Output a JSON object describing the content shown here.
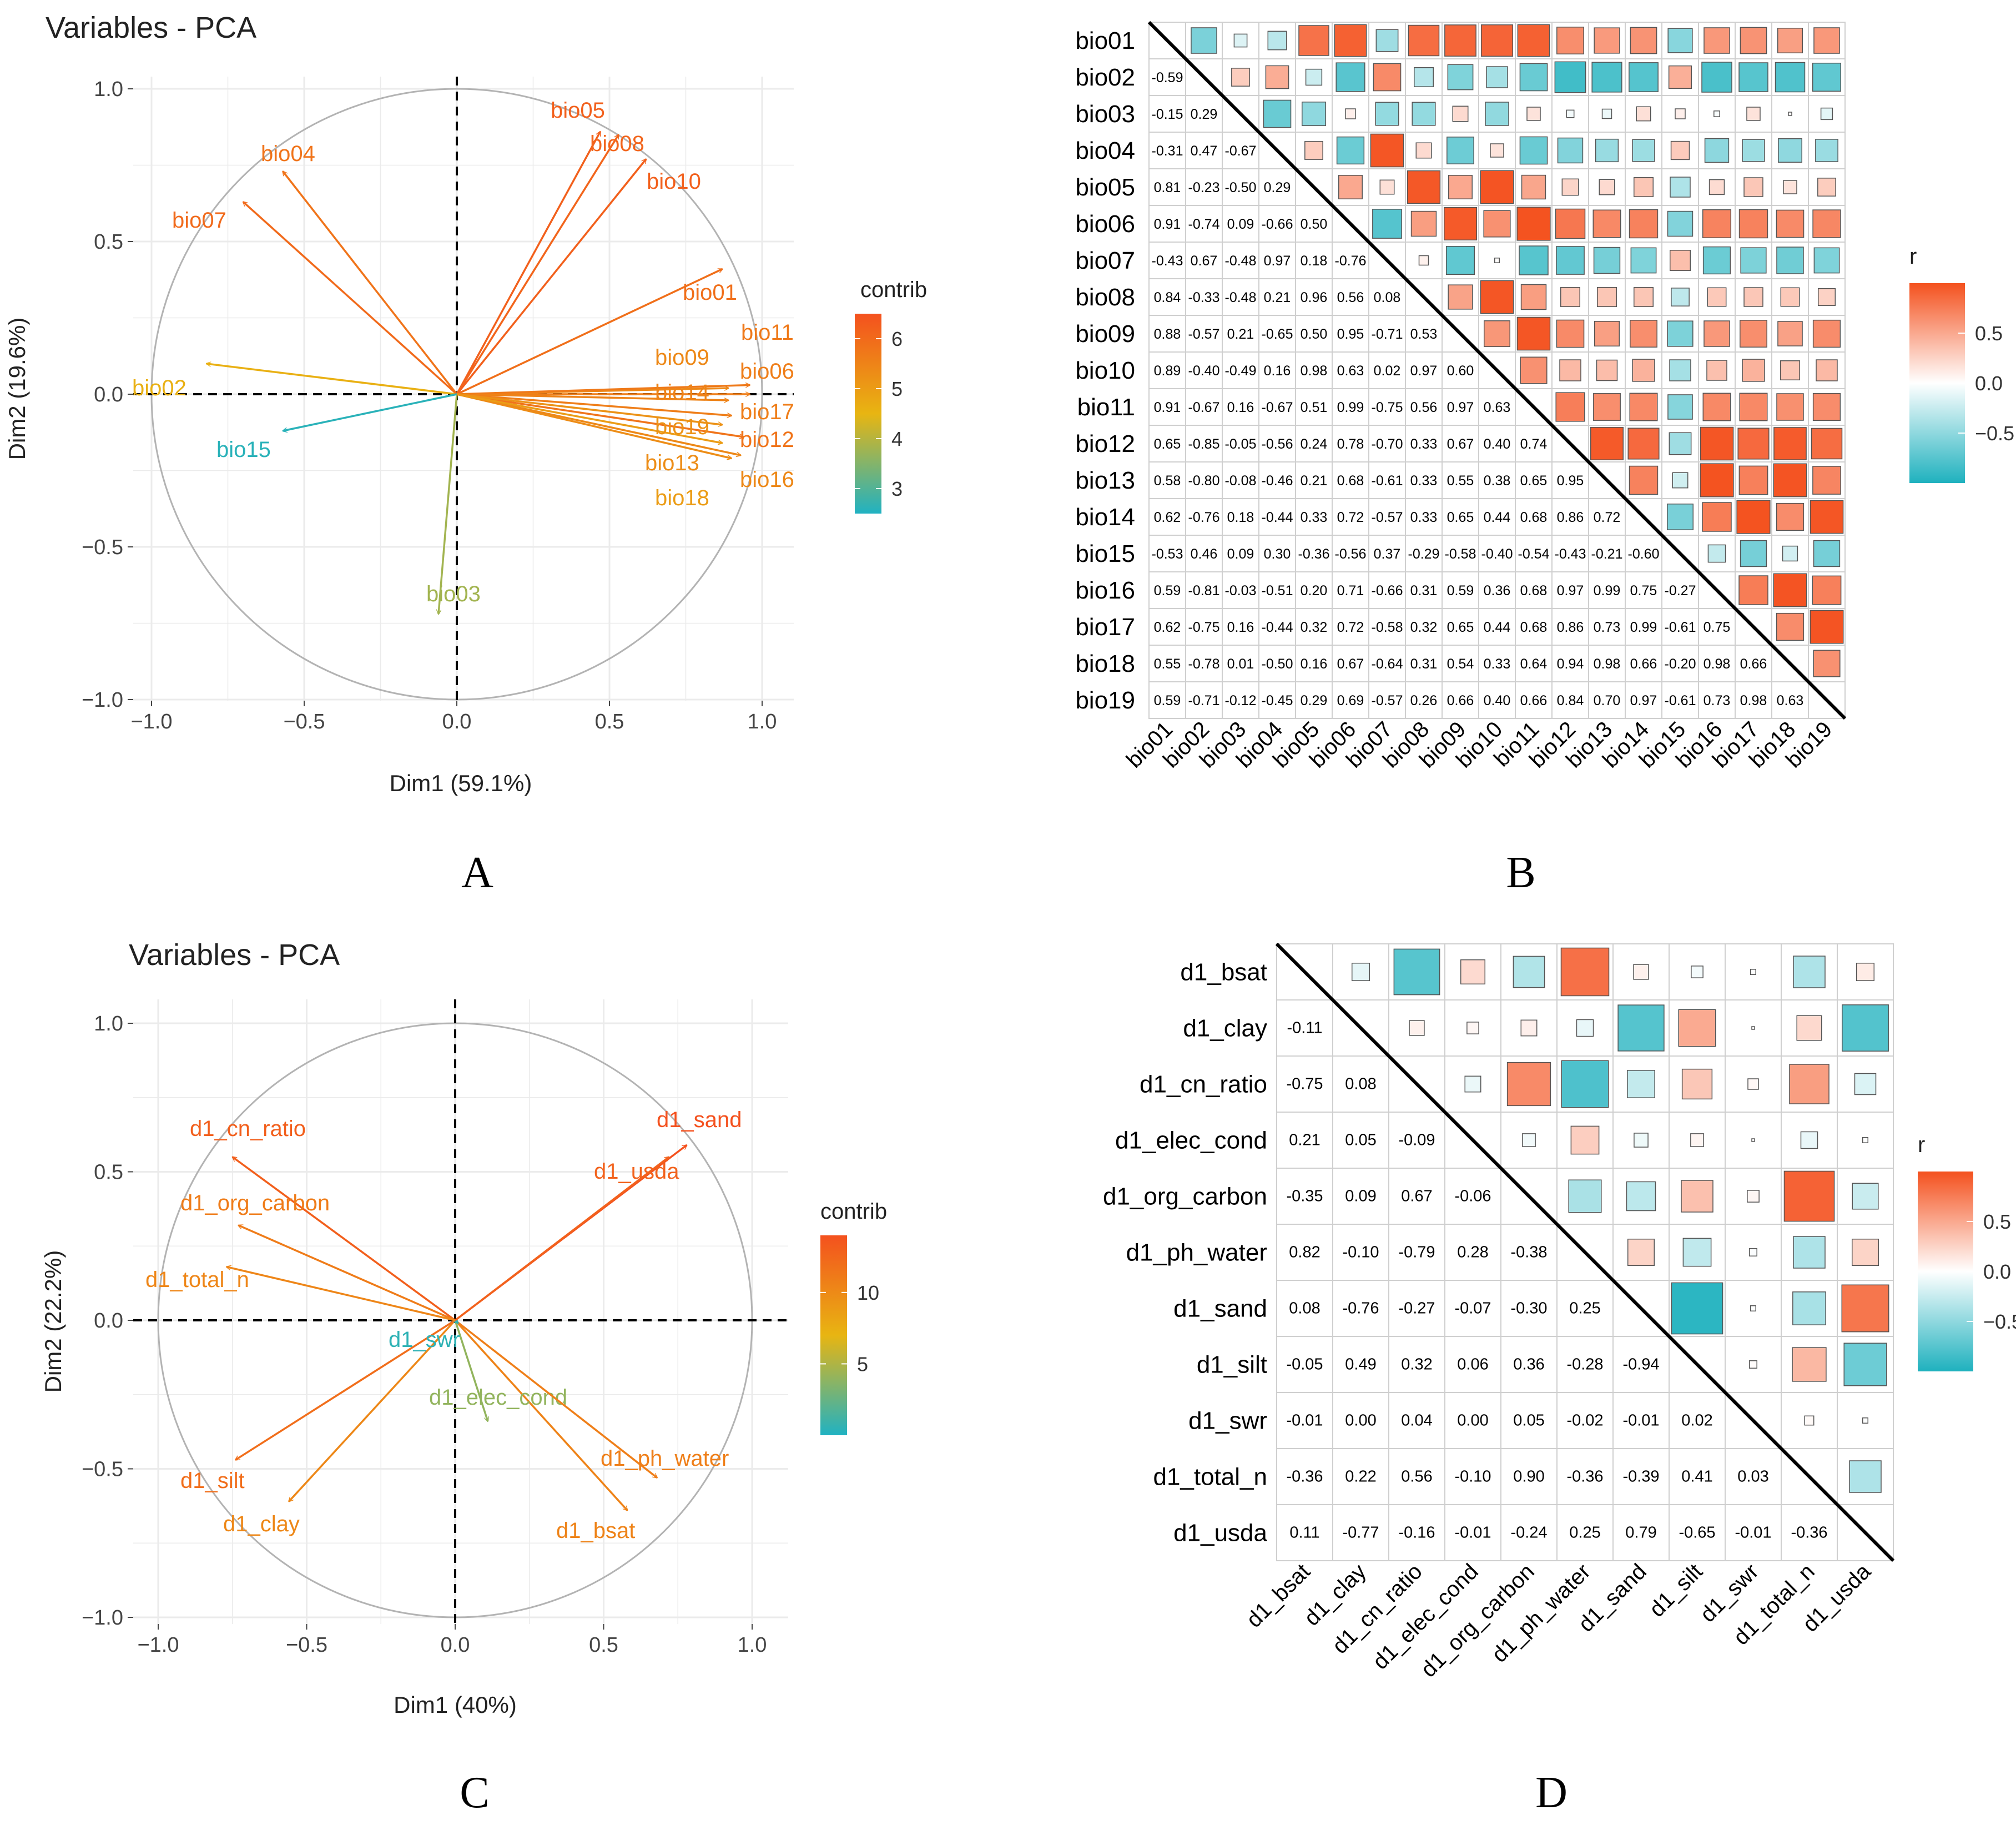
{
  "panels": {
    "A": {
      "label": "A",
      "chart_data": {
        "type": "scatter",
        "title": "Variables - PCA",
        "xlabel": "Dim1 (59.1%)",
        "ylabel": "Dim2 (19.6%)",
        "xlim": [
          -1.0,
          1.0
        ],
        "ylim": [
          -1.0,
          1.0
        ],
        "xticks": [
          "−1.0",
          "−0.5",
          "0.0",
          "0.5",
          "1.0"
        ],
        "yticks": [
          "−1.0",
          "−0.5",
          "0.0",
          "0.5",
          "1.0"
        ],
        "legend_title": "contrib",
        "legend_ticks": [
          3,
          4,
          5,
          6
        ],
        "legend_range": [
          2.5,
          6.5
        ],
        "vectors": [
          {
            "name": "bio01",
            "x": 0.87,
            "y": 0.41,
            "contrib": 5.9
          },
          {
            "name": "bio02",
            "x": -0.82,
            "y": 0.1,
            "contrib": 4.6
          },
          {
            "name": "bio03",
            "x": -0.06,
            "y": -0.72,
            "contrib": 3.8
          },
          {
            "name": "bio04",
            "x": -0.57,
            "y": 0.73,
            "contrib": 5.8
          },
          {
            "name": "bio05",
            "x": 0.47,
            "y": 0.86,
            "contrib": 6.2
          },
          {
            "name": "bio06",
            "x": 0.96,
            "y": 0.0,
            "contrib": 5.6
          },
          {
            "name": "bio07",
            "x": -0.7,
            "y": 0.63,
            "contrib": 6.0
          },
          {
            "name": "bio08",
            "x": 0.53,
            "y": 0.85,
            "contrib": 6.1
          },
          {
            "name": "bio09",
            "x": 0.89,
            "y": 0.02,
            "contrib": 5.4
          },
          {
            "name": "bio10",
            "x": 0.62,
            "y": 0.77,
            "contrib": 6.2
          },
          {
            "name": "bio11",
            "x": 0.96,
            "y": 0.03,
            "contrib": 5.7
          },
          {
            "name": "bio12",
            "x": 0.94,
            "y": -0.14,
            "contrib": 5.8
          },
          {
            "name": "bio13",
            "x": 0.9,
            "y": -0.21,
            "contrib": 5.3
          },
          {
            "name": "bio14",
            "x": 0.89,
            "y": -0.02,
            "contrib": 5.5
          },
          {
            "name": "bio15",
            "x": -0.57,
            "y": -0.12,
            "contrib": 2.6
          },
          {
            "name": "bio16",
            "x": 0.93,
            "y": -0.2,
            "contrib": 5.4
          },
          {
            "name": "bio17",
            "x": 0.9,
            "y": -0.07,
            "contrib": 5.6
          },
          {
            "name": "bio18",
            "x": 0.87,
            "y": -0.16,
            "contrib": 5.0
          },
          {
            "name": "bio19",
            "x": 0.87,
            "y": -0.1,
            "contrib": 5.2
          }
        ]
      }
    },
    "B": {
      "label": "B",
      "chart_data": {
        "type": "heatmap",
        "variables": [
          "bio01",
          "bio02",
          "bio03",
          "bio04",
          "bio05",
          "bio06",
          "bio07",
          "bio08",
          "bio09",
          "bio10",
          "bio11",
          "bio12",
          "bio13",
          "bio14",
          "bio15",
          "bio16",
          "bio17",
          "bio18",
          "bio19"
        ],
        "lower_triangle_labels": [
          [],
          [
            "-0.59"
          ],
          [
            "-0.15",
            "0.29"
          ],
          [
            "-0.31",
            "0.47",
            "-0.67"
          ],
          [
            "0.81",
            "-0.23",
            "-0.50",
            "0.29"
          ],
          [
            "0.91",
            "-0.74",
            "0.09",
            "-0.66",
            "0.50"
          ],
          [
            "-0.43",
            "0.67",
            "-0.48",
            "0.97",
            "0.18",
            "-0.76"
          ],
          [
            "0.84",
            "-0.33",
            "-0.48",
            "0.21",
            "0.96",
            "0.56",
            "0.08"
          ],
          [
            "0.88",
            "-0.57",
            "0.21",
            "-0.65",
            "0.50",
            "0.95",
            "-0.71",
            "0.53"
          ],
          [
            "0.89",
            "-0.40",
            "-0.49",
            "0.16",
            "0.98",
            "0.63",
            "0.02",
            "0.97",
            "0.60"
          ],
          [
            "0.91",
            "-0.67",
            "0.16",
            "-0.67",
            "0.51",
            "0.99",
            "-0.75",
            "0.56",
            "0.97",
            "0.63"
          ],
          [
            "0.65",
            "-0.85",
            "-0.05",
            "-0.56",
            "0.24",
            "0.78",
            "-0.70",
            "0.33",
            "0.67",
            "0.40",
            "0.74"
          ],
          [
            "0.58",
            "-0.80",
            "-0.08",
            "-0.46",
            "0.21",
            "0.68",
            "-0.61",
            "0.33",
            "0.55",
            "0.38",
            "0.65",
            "0.95"
          ],
          [
            "0.62",
            "-0.76",
            "0.18",
            "-0.44",
            "0.33",
            "0.72",
            "-0.57",
            "0.33",
            "0.65",
            "0.44",
            "0.68",
            "0.86",
            "0.72"
          ],
          [
            "-0.53",
            "0.46",
            "0.09",
            "0.30",
            "-0.36",
            "-0.56",
            "0.37",
            "-0.29",
            "-0.58",
            "-0.40",
            "-0.54",
            "-0.43",
            "-0.21",
            "-0.60"
          ],
          [
            "0.59",
            "-0.81",
            "-0.03",
            "-0.51",
            "0.20",
            "0.71",
            "-0.66",
            "0.31",
            "0.59",
            "0.36",
            "0.68",
            "0.97",
            "0.99",
            "0.75",
            "-0.27"
          ],
          [
            "0.62",
            "-0.75",
            "0.16",
            "-0.44",
            "0.32",
            "0.72",
            "-0.58",
            "0.32",
            "0.65",
            "0.44",
            "0.68",
            "0.86",
            "0.73",
            "0.99",
            "-0.61",
            "0.75"
          ],
          [
            "0.55",
            "-0.78",
            "0.01",
            "-0.50",
            "0.16",
            "0.67",
            "-0.64",
            "0.31",
            "0.54",
            "0.33",
            "0.64",
            "0.94",
            "0.98",
            "0.66",
            "-0.20",
            "0.98",
            "0.66"
          ],
          [
            "0.59",
            "-0.71",
            "-0.12",
            "-0.45",
            "0.29",
            "0.69",
            "-0.57",
            "0.26",
            "0.66",
            "0.40",
            "0.66",
            "0.84",
            "0.70",
            "0.97",
            "-0.61",
            "0.73",
            "0.98",
            "0.63"
          ]
        ],
        "legend_title": "r",
        "legend_ticks": [
          "0.5",
          "0.0",
          "−0.5"
        ]
      }
    },
    "C": {
      "label": "C",
      "chart_data": {
        "type": "scatter",
        "title": "Variables - PCA",
        "xlabel": "Dim1 (40%)",
        "ylabel": "Dim2 (22.2%)",
        "xlim": [
          -1.0,
          1.0
        ],
        "ylim": [
          -1.0,
          1.0
        ],
        "xticks": [
          "−1.0",
          "−0.5",
          "0.0",
          "0.5",
          "1.0"
        ],
        "yticks": [
          "−1.0",
          "−0.5",
          "0.0",
          "0.5",
          "1.0"
        ],
        "legend_title": "contrib",
        "legend_ticks": [
          5,
          10
        ],
        "legend_range": [
          0,
          14
        ],
        "vectors": [
          {
            "name": "d1_bsat",
            "x": 0.58,
            "y": -0.64,
            "contrib": 10.5
          },
          {
            "name": "d1_clay",
            "x": -0.56,
            "y": -0.61,
            "contrib": 10.2
          },
          {
            "name": "d1_cn_ratio",
            "x": -0.75,
            "y": 0.55,
            "contrib": 13.0
          },
          {
            "name": "d1_elec_cond",
            "x": 0.11,
            "y": -0.34,
            "contrib": 4.0
          },
          {
            "name": "d1_org_carbon",
            "x": -0.73,
            "y": 0.32,
            "contrib": 11.0
          },
          {
            "name": "d1_ph_water",
            "x": 0.68,
            "y": -0.53,
            "contrib": 10.8
          },
          {
            "name": "d1_sand",
            "x": 0.78,
            "y": 0.59,
            "contrib": 14.0
          },
          {
            "name": "d1_silt",
            "x": -0.74,
            "y": -0.47,
            "contrib": 12.0
          },
          {
            "name": "d1_swr",
            "x": 0.01,
            "y": -0.01,
            "contrib": 0.5
          },
          {
            "name": "d1_total_n",
            "x": -0.77,
            "y": 0.18,
            "contrib": 10.3
          },
          {
            "name": "d1_usda",
            "x": 0.72,
            "y": 0.55,
            "contrib": 12.8
          }
        ]
      }
    },
    "D": {
      "label": "D",
      "chart_data": {
        "type": "heatmap",
        "variables": [
          "d1_bsat",
          "d1_clay",
          "d1_cn_ratio",
          "d1_elec_cond",
          "d1_org_carbon",
          "d1_ph_water",
          "d1_sand",
          "d1_silt",
          "d1_swr",
          "d1_total_n",
          "d1_usda"
        ],
        "lower_triangle_labels": [
          [],
          [
            "-0.11"
          ],
          [
            "-0.75",
            "0.08"
          ],
          [
            "0.21",
            "0.05",
            "-0.09"
          ],
          [
            "-0.35",
            "0.09",
            "0.67",
            "-0.06"
          ],
          [
            "0.82",
            "-0.10",
            "-0.79",
            "0.28",
            "-0.38"
          ],
          [
            "0.08",
            "-0.76",
            "-0.27",
            "-0.07",
            "-0.30",
            "0.25"
          ],
          [
            "-0.05",
            "0.49",
            "0.32",
            "0.06",
            "0.36",
            "-0.28",
            "-0.94"
          ],
          [
            "-0.01",
            "0.00",
            "0.04",
            "0.00",
            "0.05",
            "-0.02",
            "-0.01",
            "0.02"
          ],
          [
            "-0.36",
            "0.22",
            "0.56",
            "-0.10",
            "0.90",
            "-0.36",
            "-0.39",
            "0.41",
            "0.03"
          ],
          [
            "0.11",
            "-0.77",
            "-0.16",
            "-0.01",
            "-0.24",
            "0.25",
            "0.79",
            "-0.65",
            "-0.01",
            "-0.36"
          ]
        ],
        "legend_title": "r",
        "legend_ticks": [
          "0.5",
          "0.0",
          "−0.5"
        ]
      }
    }
  },
  "colors": {
    "low": "#1fb1be",
    "mid": "#ffffff",
    "high": "#f4511e",
    "contrib_low": "#20b2c2",
    "contrib_mid": "#e8b512",
    "contrib_high": "#f4511e",
    "circle": "#b3b3b3",
    "grid": "#ebebeb"
  }
}
